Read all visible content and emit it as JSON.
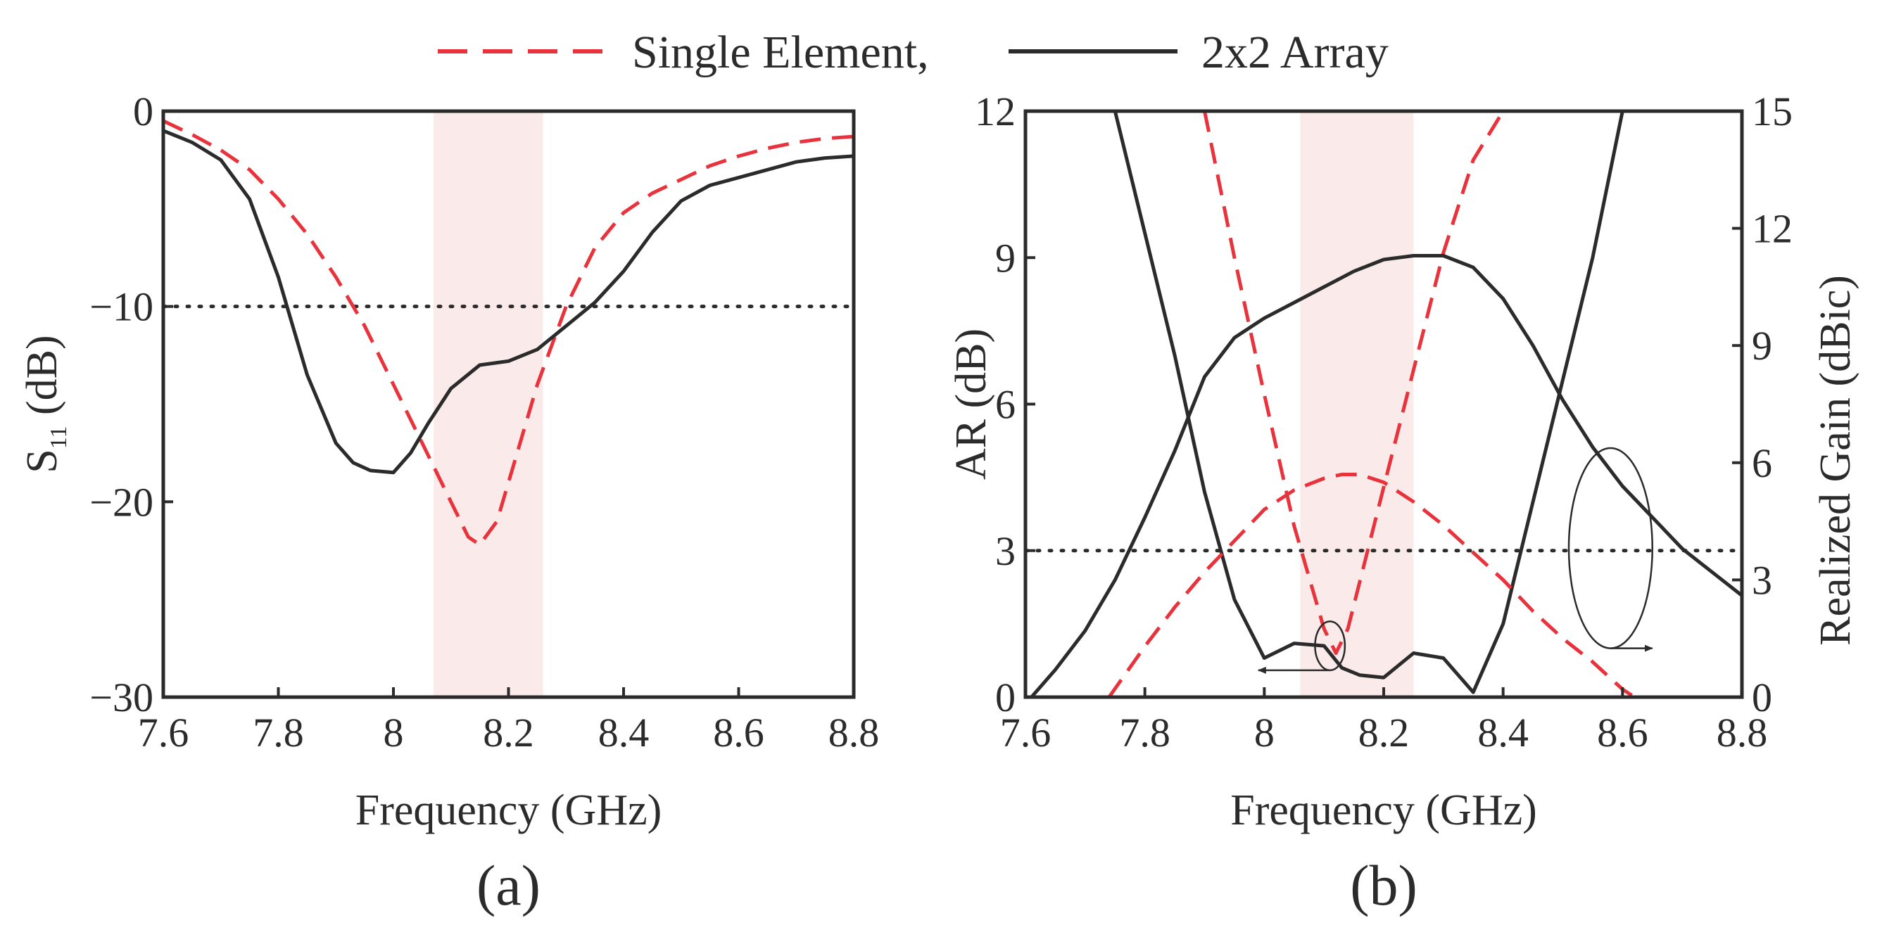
{
  "legend": {
    "single_label": "Single Element,",
    "array_label": "2x2 Array"
  },
  "colors": {
    "single": "#e8333c",
    "array": "#2b2b2b",
    "band": "#fbeaea",
    "reference": "#2b2b2b"
  },
  "chart_data": [
    {
      "type": "line",
      "panel_label": "(a)",
      "title": "",
      "xlabel": "Frequency (GHz)",
      "ylabel_main": "S",
      "ylabel_sub": "11",
      "ylabel_unit": " (dB)",
      "xlim": [
        7.6,
        8.8
      ],
      "ylim": [
        -30,
        0
      ],
      "xticks": [
        7.6,
        7.8,
        8,
        8.2,
        8.4,
        8.6,
        8.8
      ],
      "xtick_labels": [
        "7.6",
        "7.8",
        "8",
        "8.2",
        "8.4",
        "8.6",
        "8.8"
      ],
      "yticks": [
        0,
        -10,
        -20,
        -30
      ],
      "ytick_labels": [
        "0",
        "−10",
        "−20",
        "−30"
      ],
      "band": [
        8.07,
        8.26
      ],
      "reference_line": -10,
      "series": [
        {
          "name": "Single Element",
          "style": "dashed",
          "x": [
            7.6,
            7.65,
            7.7,
            7.75,
            7.8,
            7.85,
            7.9,
            7.95,
            8.0,
            8.05,
            8.1,
            8.13,
            8.15,
            8.18,
            8.2,
            8.25,
            8.3,
            8.35,
            8.4,
            8.45,
            8.5,
            8.55,
            8.6,
            8.65,
            8.7,
            8.75,
            8.8
          ],
          "y": [
            -0.5,
            -1.2,
            -2.0,
            -3.0,
            -4.5,
            -6.3,
            -8.5,
            -11.0,
            -14.0,
            -17.0,
            -20.0,
            -21.8,
            -22.2,
            -21.0,
            -19.0,
            -14.0,
            -10.0,
            -7.0,
            -5.2,
            -4.2,
            -3.5,
            -2.8,
            -2.3,
            -1.9,
            -1.6,
            -1.4,
            -1.3
          ]
        },
        {
          "name": "2x2 Array",
          "style": "solid",
          "x": [
            7.6,
            7.65,
            7.7,
            7.75,
            7.8,
            7.85,
            7.9,
            7.93,
            7.96,
            8.0,
            8.03,
            8.06,
            8.1,
            8.15,
            8.2,
            8.25,
            8.3,
            8.35,
            8.4,
            8.45,
            8.5,
            8.55,
            8.6,
            8.65,
            8.7,
            8.75,
            8.8
          ],
          "y": [
            -1.0,
            -1.6,
            -2.5,
            -4.5,
            -8.5,
            -13.5,
            -17.0,
            -18.0,
            -18.4,
            -18.5,
            -17.5,
            -16.0,
            -14.2,
            -13.0,
            -12.8,
            -12.2,
            -11.0,
            -9.8,
            -8.2,
            -6.2,
            -4.6,
            -3.8,
            -3.4,
            -3.0,
            -2.6,
            -2.4,
            -2.3
          ]
        }
      ]
    },
    {
      "type": "line",
      "panel_label": "(b)",
      "title": "",
      "xlabel": "Frequency (GHz)",
      "ylabel": "AR (dB)",
      "y2label": "Realized Gain (dBic)",
      "xlim": [
        7.6,
        8.8
      ],
      "ylim": [
        0,
        12
      ],
      "y2lim": [
        0,
        15
      ],
      "xticks": [
        7.6,
        7.8,
        8,
        8.2,
        8.4,
        8.6,
        8.8
      ],
      "xtick_labels": [
        "7.6",
        "7.8",
        "8",
        "8.2",
        "8.4",
        "8.6",
        "8.8"
      ],
      "yticks": [
        0,
        3,
        6,
        9,
        12
      ],
      "ytick_labels": [
        "0",
        "3",
        "6",
        "9",
        "12"
      ],
      "y2ticks": [
        0,
        3,
        6,
        9,
        12,
        15
      ],
      "y2tick_labels": [
        "0",
        "3",
        "6",
        "9",
        "12",
        "15"
      ],
      "band": [
        8.06,
        8.25
      ],
      "reference_line": 3,
      "series": [
        {
          "name": "Single Element AR",
          "style": "dashed",
          "axis": "left",
          "x": [
            7.9,
            7.95,
            8.0,
            8.05,
            8.1,
            8.12,
            8.14,
            8.2,
            8.25,
            8.3,
            8.35,
            8.4
          ],
          "y": [
            12.0,
            9.0,
            6.2,
            3.5,
            1.4,
            0.9,
            1.4,
            4.3,
            6.7,
            9.1,
            11.0,
            12.0
          ]
        },
        {
          "name": "2x2 Array AR",
          "style": "solid",
          "axis": "left",
          "x": [
            7.75,
            7.8,
            7.85,
            7.9,
            7.95,
            8.0,
            8.05,
            8.1,
            8.13,
            8.16,
            8.2,
            8.25,
            8.3,
            8.35,
            8.4,
            8.45,
            8.5,
            8.55,
            8.6
          ],
          "y": [
            12.0,
            9.5,
            7.0,
            4.2,
            2.0,
            0.8,
            1.1,
            1.05,
            0.6,
            0.45,
            0.4,
            0.9,
            0.8,
            0.1,
            1.5,
            4.0,
            6.5,
            9.0,
            12.0
          ]
        },
        {
          "name": "Single Element Gain",
          "style": "dashed",
          "axis": "right",
          "x": [
            7.74,
            7.8,
            7.85,
            7.9,
            7.95,
            8.0,
            8.05,
            8.1,
            8.13,
            8.16,
            8.2,
            8.25,
            8.3,
            8.35,
            8.4,
            8.45,
            8.5,
            8.55,
            8.6,
            8.62
          ],
          "y": [
            0.0,
            1.3,
            2.3,
            3.2,
            4.0,
            4.8,
            5.3,
            5.6,
            5.7,
            5.7,
            5.5,
            5.0,
            4.4,
            3.7,
            3.0,
            2.2,
            1.5,
            0.9,
            0.2,
            0.0
          ]
        },
        {
          "name": "2x2 Array Gain",
          "style": "solid",
          "axis": "right",
          "x": [
            7.61,
            7.65,
            7.7,
            7.75,
            7.8,
            7.85,
            7.9,
            7.95,
            8.0,
            8.05,
            8.1,
            8.15,
            8.2,
            8.25,
            8.3,
            8.35,
            8.4,
            8.45,
            8.5,
            8.55,
            8.6,
            8.65,
            8.7,
            8.75,
            8.8
          ],
          "y": [
            0.0,
            0.7,
            1.7,
            3.0,
            4.6,
            6.3,
            8.2,
            9.2,
            9.7,
            10.1,
            10.5,
            10.9,
            11.2,
            11.3,
            11.3,
            11.0,
            10.2,
            9.0,
            7.6,
            6.4,
            5.4,
            4.6,
            3.8,
            3.2,
            2.6
          ]
        }
      ],
      "annotations": [
        {
          "type": "ellipse",
          "center": [
            8.11,
            1.05
          ],
          "radii": [
            0.025,
            0.5
          ],
          "arrow_to": 7.99,
          "arrow_direction": "left",
          "axis_pointed": "AR (dB)"
        },
        {
          "type": "ellipse",
          "center": [
            8.58,
            3.05
          ],
          "radii": [
            0.07,
            2.05
          ],
          "arrow_to": 8.65,
          "arrow_direction": "right",
          "axis_pointed": "Realized Gain (dBic)"
        }
      ]
    }
  ]
}
